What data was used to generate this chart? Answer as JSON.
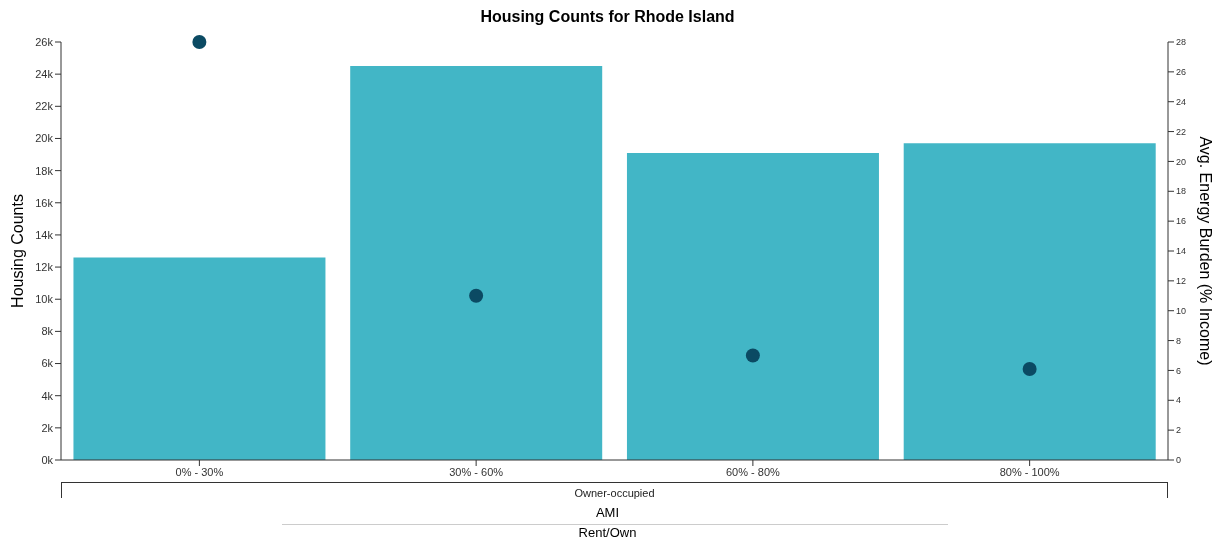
{
  "chart_data": {
    "type": "bar",
    "title": "Housing Counts for Rhode Island",
    "xlabel": "AMI",
    "ylabel": "Housing Counts",
    "y2label": "Avg. Energy Burden (% Income)",
    "categories": [
      "0% - 30%",
      "30% - 60%",
      "60% - 80%",
      "80% - 100%"
    ],
    "series": [
      {
        "color": "#42b6c6",
        "values": [
          12600,
          24500,
          19100,
          19700
        ]
      },
      {
        "type": "scatter",
        "axis": "y2",
        "color": "#0b4a63",
        "values": [
          28,
          11,
          7,
          6.1
        ]
      }
    ],
    "ylim": [
      0,
      26000
    ],
    "yticks": [
      {
        "value": 0,
        "label": "0k"
      },
      {
        "value": 2000,
        "label": "2k"
      },
      {
        "value": 4000,
        "label": "4k"
      },
      {
        "value": 6000,
        "label": "6k"
      },
      {
        "value": 8000,
        "label": "8k"
      },
      {
        "value": 10000,
        "label": "10k"
      },
      {
        "value": 12000,
        "label": "12k"
      },
      {
        "value": 14000,
        "label": "14k"
      },
      {
        "value": 16000,
        "label": "16k"
      },
      {
        "value": 18000,
        "label": "18k"
      },
      {
        "value": 20000,
        "label": "20k"
      },
      {
        "value": 22000,
        "label": "22k"
      },
      {
        "value": 24000,
        "label": "24k"
      },
      {
        "value": 26000,
        "label": "26k"
      }
    ],
    "y2lim": [
      0,
      28
    ],
    "y2ticks": [
      0,
      2,
      4,
      6,
      8,
      10,
      12,
      14,
      16,
      18,
      20,
      22,
      24,
      26,
      28
    ],
    "marker": "circle",
    "annotations": [
      "Owner-occupied",
      "Rent/Own"
    ]
  }
}
